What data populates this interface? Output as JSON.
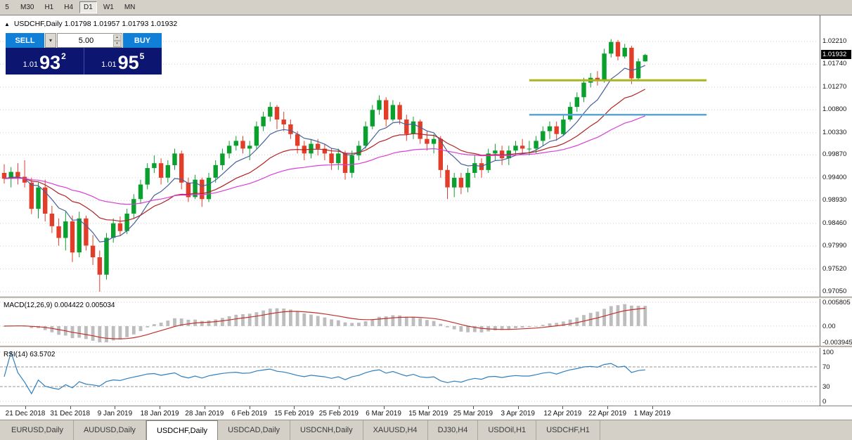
{
  "toolbar": {
    "timeframes": [
      {
        "label": "5",
        "active": false
      },
      {
        "label": "M30",
        "active": false
      },
      {
        "label": "H1",
        "active": false
      },
      {
        "label": "H4",
        "active": false
      },
      {
        "label": "D1",
        "active": true
      },
      {
        "label": "W1",
        "active": false
      },
      {
        "label": "MN",
        "active": false
      }
    ]
  },
  "chart_header": {
    "symbol": "USDCHF,Daily",
    "ohlc": "1.01798 1.01957 1.01793 1.01932"
  },
  "icons": {
    "up_arrow": "▲",
    "dropdown": "▾",
    "spin_up": "▴",
    "spin_down": "▾"
  },
  "trade_panel": {
    "sell_label": "SELL",
    "buy_label": "BUY",
    "volume": "5.00",
    "sell_price_prefix": "1.01",
    "sell_price_big": "93",
    "sell_price_sup": "2",
    "buy_price_prefix": "1.01",
    "buy_price_big": "95",
    "buy_price_sup": "5",
    "button_color": "#0f7fd8",
    "panel_color": "#0c1670"
  },
  "chart_data": {
    "type": "candlestick",
    "symbol": "USDCHF",
    "timeframe": "Daily",
    "colors": {
      "candle_up": "#0aa02e",
      "candle_down": "#e23d28",
      "macd_bar": "#bdbdbd",
      "macd_signal": "#c03028",
      "rsi_line": "#2e7fbe",
      "grid": "#cfcfcf"
    },
    "candles": [
      [
        0.995,
        0.9968,
        0.9928,
        0.9938
      ],
      [
        0.9938,
        0.9962,
        0.992,
        0.9952
      ],
      [
        0.9952,
        0.997,
        0.9926,
        0.9942
      ],
      [
        0.9942,
        0.9976,
        0.992,
        0.993
      ],
      [
        0.993,
        0.994,
        0.9865,
        0.9876
      ],
      [
        0.9876,
        0.993,
        0.9856,
        0.992
      ],
      [
        0.992,
        0.9936,
        0.985,
        0.9866
      ],
      [
        0.9866,
        0.9882,
        0.9826,
        0.984
      ],
      [
        0.984,
        0.9856,
        0.98,
        0.9816
      ],
      [
        0.9816,
        0.987,
        0.979,
        0.985
      ],
      [
        0.985,
        0.9862,
        0.9766,
        0.9786
      ],
      [
        0.9786,
        0.987,
        0.9776,
        0.9856
      ],
      [
        0.9856,
        0.9862,
        0.979,
        0.98
      ],
      [
        0.98,
        0.9822,
        0.976,
        0.9776
      ],
      [
        0.9776,
        0.979,
        0.9705,
        0.974
      ],
      [
        0.974,
        0.9826,
        0.973,
        0.9816
      ],
      [
        0.9816,
        0.9856,
        0.9806,
        0.9846
      ],
      [
        0.9846,
        0.986,
        0.982,
        0.983
      ],
      [
        0.983,
        0.9876,
        0.9824,
        0.9866
      ],
      [
        0.9866,
        0.9906,
        0.9856,
        0.9896
      ],
      [
        0.9896,
        0.9936,
        0.9886,
        0.9926
      ],
      [
        0.9926,
        0.997,
        0.9916,
        0.996
      ],
      [
        0.996,
        0.9986,
        0.995,
        0.997
      ],
      [
        0.997,
        0.998,
        0.9926,
        0.994
      ],
      [
        0.994,
        0.9976,
        0.993,
        0.9966
      ],
      [
        0.9966,
        1.0,
        0.9956,
        0.999
      ],
      [
        0.999,
        0.9996,
        0.9916,
        0.993
      ],
      [
        0.993,
        0.994,
        0.989,
        0.99
      ],
      [
        0.99,
        0.9946,
        0.9896,
        0.9936
      ],
      [
        0.9936,
        0.994,
        0.988,
        0.9896
      ],
      [
        0.9896,
        0.995,
        0.989,
        0.994
      ],
      [
        0.994,
        0.9976,
        0.993,
        0.9966
      ],
      [
        0.9966,
        1.0,
        0.9956,
        0.999
      ],
      [
        0.999,
        1.0016,
        0.998,
        1.0006
      ],
      [
        1.0006,
        1.0026,
        0.9996,
        1.0016
      ],
      [
        1.0016,
        1.0026,
        0.999,
        1.0
      ],
      [
        1.0,
        1.0016,
        0.9976,
        1.0006
      ],
      [
        1.0006,
        1.0056,
        1.0,
        1.0046
      ],
      [
        1.0046,
        1.0076,
        1.0036,
        1.0066
      ],
      [
        1.0066,
        1.0096,
        1.0056,
        1.0086
      ],
      [
        1.0086,
        1.009,
        1.004,
        1.006
      ],
      [
        1.006,
        1.0076,
        1.0036,
        1.005
      ],
      [
        1.005,
        1.006,
        1.002,
        1.003
      ],
      [
        1.003,
        1.0036,
        0.999,
        1.0006
      ],
      [
        1.0006,
        1.0016,
        0.9976,
        0.999
      ],
      [
        0.999,
        1.002,
        0.998,
        1.001
      ],
      [
        1.001,
        1.002,
        0.9986,
        1.0
      ],
      [
        1.0,
        1.001,
        0.9976,
        0.999
      ],
      [
        0.999,
        1.0,
        0.9956,
        0.997
      ],
      [
        0.997,
        1.0,
        0.9956,
        0.999
      ],
      [
        0.999,
        0.9996,
        0.9936,
        0.995
      ],
      [
        0.995,
        0.9996,
        0.994,
        0.9986
      ],
      [
        0.9986,
        1.0016,
        0.9976,
        1.0006
      ],
      [
        1.0006,
        1.0056,
        1.0,
        1.0046
      ],
      [
        1.0046,
        1.009,
        1.004,
        1.008
      ],
      [
        1.008,
        1.011,
        1.007,
        1.01
      ],
      [
        1.01,
        1.0106,
        1.0046,
        1.006
      ],
      [
        1.006,
        1.01,
        1.0056,
        1.009
      ],
      [
        1.009,
        1.0096,
        1.005,
        1.006
      ],
      [
        1.006,
        1.007,
        1.0016,
        1.003
      ],
      [
        1.003,
        1.0066,
        1.002,
        1.0056
      ],
      [
        1.0056,
        1.006,
        1.001,
        1.002
      ],
      [
        1.002,
        1.0036,
        0.9996,
        1.001
      ],
      [
        1.001,
        1.003,
        0.999,
        1.002
      ],
      [
        1.002,
        1.0026,
        0.994,
        0.9956
      ],
      [
        0.9956,
        0.9966,
        0.9896,
        0.992
      ],
      [
        0.992,
        0.995,
        0.99,
        0.994
      ],
      [
        0.994,
        0.995,
        0.9906,
        0.992
      ],
      [
        0.992,
        0.996,
        0.991,
        0.995
      ],
      [
        0.995,
        0.9986,
        0.994,
        0.997
      ],
      [
        0.997,
        0.998,
        0.994,
        0.9956
      ],
      [
        0.9956,
        1.0,
        0.995,
        0.999
      ],
      [
        0.999,
        1.001,
        0.9976,
        0.9996
      ],
      [
        0.9996,
        1.0006,
        0.9966,
        0.998
      ],
      [
        0.998,
        1.0006,
        0.9966,
        0.9996
      ],
      [
        0.9996,
        1.0016,
        0.9986,
        1.0006
      ],
      [
        1.0006,
        1.002,
        0.999,
        1.0
      ],
      [
        1.0,
        1.0016,
        0.9986,
        1.0
      ],
      [
        1.0,
        1.0026,
        0.999,
        1.0016
      ],
      [
        1.0016,
        1.0046,
        1.0006,
        1.0036
      ],
      [
        1.0036,
        1.0056,
        1.002,
        1.0046
      ],
      [
        1.0046,
        1.0056,
        1.0016,
        1.003
      ],
      [
        1.003,
        1.007,
        1.0026,
        1.006
      ],
      [
        1.006,
        1.0096,
        1.0056,
        1.0086
      ],
      [
        1.0086,
        1.0116,
        1.0076,
        1.0106
      ],
      [
        1.0106,
        1.0146,
        1.0096,
        1.0136
      ],
      [
        1.0136,
        1.0156,
        1.0126,
        1.0146
      ],
      [
        1.0146,
        1.016,
        1.013,
        1.014
      ],
      [
        1.014,
        1.0206,
        1.0136,
        1.0196
      ],
      [
        1.0196,
        1.0226,
        1.0188,
        1.022
      ],
      [
        1.022,
        1.0224,
        1.0182,
        1.019
      ],
      [
        1.019,
        1.0216,
        1.0186,
        1.0208
      ],
      [
        1.0208,
        1.0212,
        1.0133,
        1.0145
      ],
      [
        1.0145,
        1.0186,
        1.014,
        1.018
      ],
      [
        1.018,
        1.01957,
        1.01793,
        1.01932
      ]
    ],
    "overlays": [
      {
        "name": "ma-fast",
        "period": 8,
        "color": "#46609a"
      },
      {
        "name": "ma-mid",
        "period": 20,
        "color": "#b22222"
      },
      {
        "name": "ma-slow",
        "period": 45,
        "color": "#d83fd8"
      }
    ],
    "hlines": [
      {
        "price": 1.0141,
        "color": "#a9b521",
        "width": 3,
        "from_index": 77,
        "to_index": 103
      },
      {
        "price": 1.007,
        "color": "#5aa7d7",
        "width": 2.5,
        "from_index": 77,
        "to_index": 103
      }
    ],
    "y_axis": {
      "labels": [
        "1.02210",
        "1.01740",
        "1.01270",
        "1.00800",
        "1.00330",
        "0.99870",
        "0.99400",
        "0.98930",
        "0.98460",
        "0.97990",
        "0.97520",
        "0.97050"
      ],
      "current_price": "1.01932"
    },
    "x_axis": {
      "labels": [
        "21 Dec 2018",
        "31 Dec 2018",
        "9 Jan 2019",
        "18 Jan 2019",
        "28 Jan 2019",
        "6 Feb 2019",
        "15 Feb 2019",
        "25 Feb 2019",
        "6 Mar 2019",
        "15 Mar 2019",
        "25 Mar 2019",
        "3 Apr 2019",
        "12 Apr 2019",
        "22 Apr 2019",
        "1 May 2019"
      ]
    },
    "indicators": {
      "macd": {
        "label": "MACD(12,26,9)",
        "values_text": "0.004422 0.005034",
        "fast": 12,
        "slow": 26,
        "signal": 9,
        "axis_labels": [
          "0.005805",
          "0.00",
          "-0.003945"
        ]
      },
      "rsi": {
        "label": "RSI(14)",
        "value_text": "63.5702",
        "period": 14,
        "levels": [
          70,
          30
        ],
        "axis_labels": [
          "100",
          "70",
          "30",
          "0"
        ]
      }
    }
  },
  "tabs": {
    "items": [
      "EURUSD,Daily",
      "AUDUSD,Daily",
      "USDCHF,Daily",
      "USDCAD,Daily",
      "USDCNH,Daily",
      "XAUUSD,H4",
      "DJ30,H4",
      "USDOil,H1",
      "USDCHF,H1"
    ],
    "active_index": 2
  }
}
